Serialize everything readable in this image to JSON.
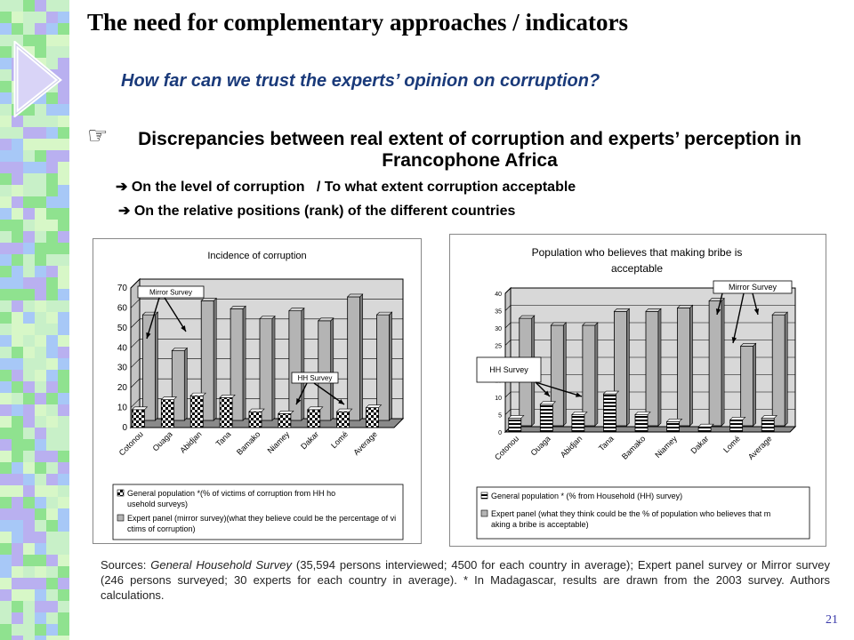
{
  "slide": {
    "title": "The need for complementary approaches / indicators",
    "subtitle": "How far can we trust the experts’ opinion on corruption?",
    "bullet_icon": "pointing-hand-icon",
    "main_point": "Discrepancies between real extent of corruption and experts’ perception in Francophone Africa",
    "sub_points": [
      "On the level of corruption   / To what extent corruption acceptable",
      "On the relative positions (rank) of the different countries"
    ],
    "sources_prefix": "Sources: ",
    "sources_survey1": "General Household Survey",
    "sources_mid": " (35,594 persons interviewed; 4500 for each country in average); Expert panel survey or Mirror survey (246 persons surveyed; 30 experts for each country in average). * In Madagascar, results are drawn from the 2003 survey. Authors calculations.",
    "page_number": "21",
    "colors": {
      "sidebar": [
        "#8fe28f",
        "#b9b0f0",
        "#c8f0c8",
        "#a7c8f7",
        "#d7f7c7"
      ],
      "subtitle": "#1a3a7a",
      "arrow": "#d5d5f7"
    }
  },
  "chart_data": [
    {
      "type": "bar",
      "title": "Incidence of corruption",
      "categories": [
        "Cotonou",
        "Ouaga",
        "Abidjan",
        "Tana",
        "Bamako",
        "Niamey",
        "Dakar",
        "Lomé",
        "Average"
      ],
      "series": [
        {
          "name": "General population *(% of victims of corruption from HH household surveys)",
          "values": [
            9,
            14,
            16,
            15,
            8,
            7,
            9,
            8,
            10
          ]
        },
        {
          "name": "Expert panel (mirror survey)(what they believe could be the percentage of victims of corruption)",
          "values": [
            53,
            35,
            60,
            56,
            51,
            55,
            50,
            62,
            53
          ]
        }
      ],
      "ylim": [
        0,
        70
      ],
      "yticks": [
        0,
        10,
        20,
        30,
        40,
        50,
        60,
        70
      ],
      "annotations": [
        "Mirror Survey",
        "HH Survey"
      ],
      "grid": true,
      "legend": "bottom"
    },
    {
      "type": "bar",
      "title": "Population who believes that making bribe is acceptable",
      "categories": [
        "Cotonou",
        "Ouaga",
        "Abidjan",
        "Tana",
        "Bamako",
        "Niamey",
        "Dakar",
        "Lomé",
        "Average"
      ],
      "series": [
        {
          "name": "General population * (% from Household (HH) survey)",
          "values": [
            4,
            8,
            5,
            11,
            5,
            3,
            1.5,
            3.5,
            4
          ]
        },
        {
          "name": "Expert panel (what they think could be the % of population who believes that making a bribe is acceptable)",
          "values": [
            31,
            29,
            29,
            33,
            33,
            34,
            36,
            23,
            32
          ]
        }
      ],
      "ylim": [
        0,
        40
      ],
      "yticks": [
        0,
        5,
        10,
        15,
        20,
        25,
        30,
        35,
        40
      ],
      "annotations": [
        "Mirror Survey",
        "HH Survey"
      ],
      "grid": true,
      "legend": "bottom"
    }
  ]
}
